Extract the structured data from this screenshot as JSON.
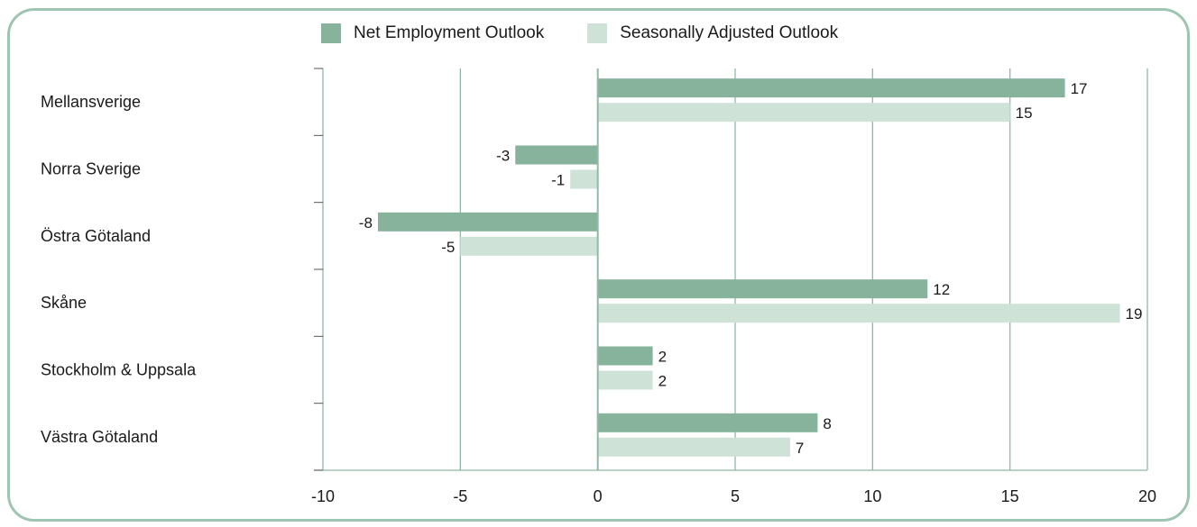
{
  "chart_data": {
    "type": "bar",
    "orientation": "horizontal",
    "categories": [
      "Mellansverige",
      "Norra Sverige",
      "Östra Götaland",
      "Skåne",
      "Stockholm & Uppsala",
      "Västra Götaland"
    ],
    "series": [
      {
        "name": "Net Employment Outlook",
        "values": [
          17,
          -3,
          -8,
          12,
          2,
          8
        ],
        "color": "#87b39d"
      },
      {
        "name": "Seasonally Adjusted Outlook",
        "values": [
          15,
          -1,
          -5,
          19,
          2,
          7
        ],
        "color": "#cfe2d8"
      }
    ],
    "xlim": [
      -10,
      20
    ],
    "xticks": [
      "-10",
      "-5",
      "0",
      "5",
      "10",
      "15",
      "20"
    ],
    "grid": true,
    "legend_position": "top",
    "colors": {
      "grid": "#8fb9a5",
      "frame": "#9ec4b2"
    }
  }
}
